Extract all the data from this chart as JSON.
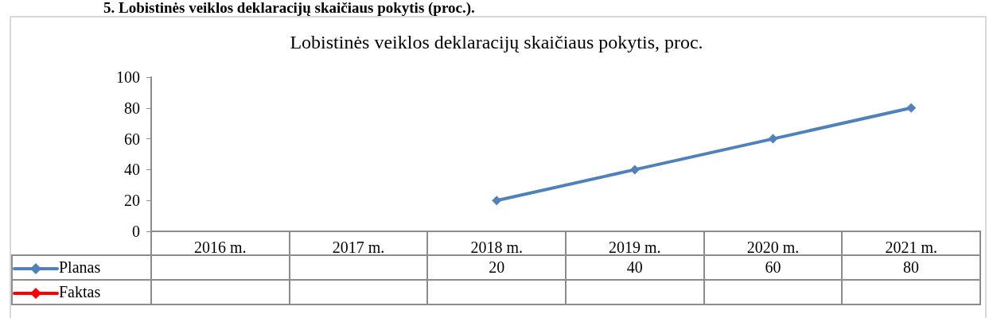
{
  "chart_data": {
    "type": "line",
    "title": "Lobistinės veiklos deklaracijų skaičiaus pokytis, proc.",
    "annotations": [
      "5. Lobistinės veiklos deklaracijų skaičiaus pokytis (proc.)."
    ],
    "categories": [
      "2016 m.",
      "2017 m.",
      "2018 m.",
      "2019 m.",
      "2020 m.",
      "2021 m."
    ],
    "series": [
      {
        "name": "Planas",
        "color": "#4f81bd",
        "values": [
          null,
          null,
          20,
          40,
          60,
          80
        ]
      },
      {
        "name": "Faktas",
        "color": "#ff0000",
        "values": [
          null,
          null,
          null,
          null,
          null,
          null
        ]
      }
    ],
    "ylim": [
      0,
      100
    ],
    "yticks": [
      0,
      20,
      40,
      60,
      80,
      100
    ],
    "grid": false,
    "legend": "bottom",
    "marker": "diamond",
    "line_style": "solid",
    "data_labels": true
  }
}
